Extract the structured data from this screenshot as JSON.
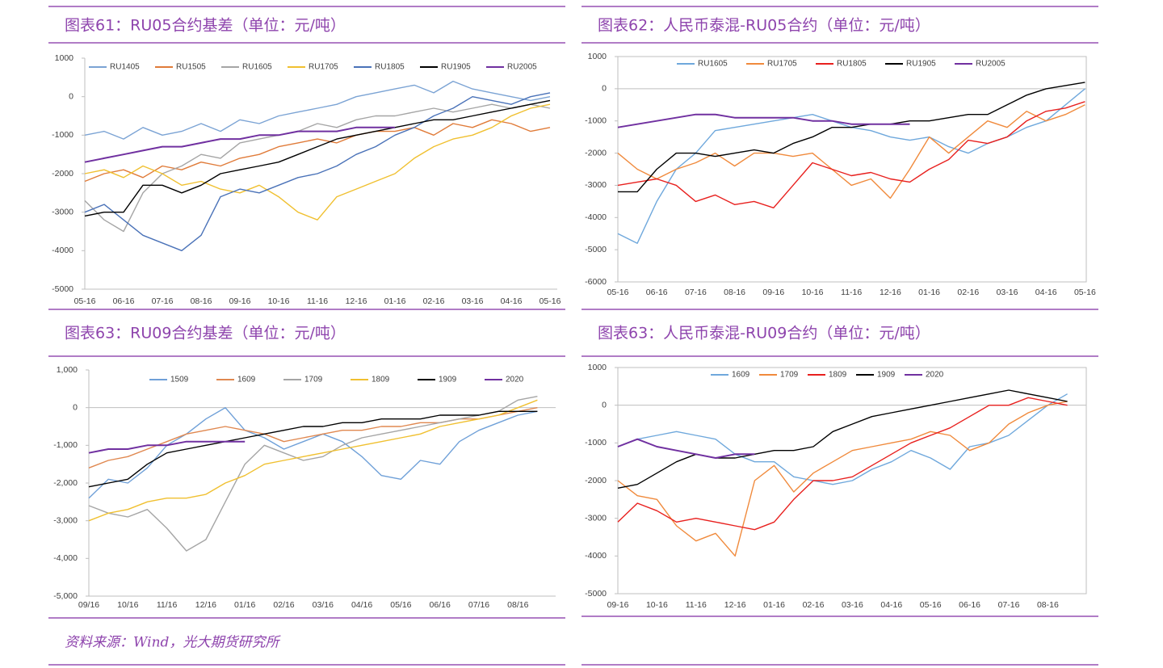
{
  "chart_data": [
    {
      "type": "line",
      "title": "图表61：RU05合约基差（单位：元/吨）",
      "categories": [
        "05-16",
        null,
        "06-16",
        null,
        "07-16",
        null,
        "08-16",
        null,
        "09-16",
        null,
        "10-16",
        null,
        "11-16",
        null,
        "12-16",
        null,
        "01-16",
        null,
        "02-16",
        null,
        "03-16",
        null,
        "04-16",
        null,
        "05-16"
      ],
      "ylim": [
        -5000,
        1000
      ],
      "yticks": [
        1000,
        0,
        -1000,
        -2000,
        -3000,
        -4000,
        -5000
      ],
      "grid": false,
      "series": [
        {
          "name": "RU1405",
          "color": "#7ba3d4",
          "values": [
            -1000,
            -900,
            -1100,
            -800,
            -1000,
            -900,
            -700,
            -900,
            -600,
            -700,
            -500,
            -400,
            -300,
            -200,
            0,
            100,
            200,
            300,
            100,
            400,
            200,
            100,
            0,
            -100,
            0
          ]
        },
        {
          "name": "RU1505",
          "color": "#e07b39",
          "values": [
            -2200,
            -2000,
            -1900,
            -2100,
            -1800,
            -1900,
            -1700,
            -1800,
            -1600,
            -1500,
            -1300,
            -1200,
            -1100,
            -1200,
            -1000,
            -900,
            -900,
            -800,
            -1000,
            -700,
            -800,
            -600,
            -700,
            -900,
            -800
          ]
        },
        {
          "name": "RU1605",
          "color": "#a5a5a5",
          "values": [
            -2700,
            -3200,
            -3500,
            -2500,
            -2000,
            -1800,
            -1500,
            -1600,
            -1200,
            -1100,
            -1000,
            -900,
            -700,
            -800,
            -600,
            -500,
            -500,
            -400,
            -300,
            -400,
            -300,
            -200,
            -300,
            -200,
            -300
          ]
        },
        {
          "name": "RU1705",
          "color": "#f0c030",
          "values": [
            -2000,
            -1900,
            -2100,
            -1800,
            -2000,
            -2300,
            -2200,
            -2400,
            -2500,
            -2300,
            -2600,
            -3000,
            -3200,
            -2600,
            -2400,
            -2200,
            -2000,
            -1600,
            -1300,
            -1100,
            -1000,
            -800,
            -500,
            -300,
            -200
          ]
        },
        {
          "name": "RU1805",
          "color": "#4a72b8",
          "values": [
            -3000,
            -2800,
            -3200,
            -3600,
            -3800,
            -4000,
            -3600,
            -2600,
            -2400,
            -2500,
            -2300,
            -2100,
            -2000,
            -1800,
            -1500,
            -1300,
            -1000,
            -800,
            -500,
            -300,
            0,
            -100,
            -200,
            0,
            100
          ]
        },
        {
          "name": "RU1905",
          "color": "#000000",
          "values": [
            -3100,
            -3000,
            -3000,
            -2300,
            -2300,
            -2500,
            -2300,
            -2000,
            -1900,
            -1800,
            -1700,
            -1500,
            -1300,
            -1100,
            -1000,
            -900,
            -800,
            -700,
            -600,
            -600,
            -500,
            -400,
            -300,
            -200,
            -100
          ]
        },
        {
          "name": "RU2005",
          "color": "#7030a0",
          "values": [
            -1700,
            -1600,
            -1500,
            -1400,
            -1300,
            -1300,
            -1200,
            -1100,
            -1100,
            -1000,
            -1000,
            -900,
            -900,
            -900,
            -800,
            -800,
            -800,
            null,
            null,
            null,
            null,
            null,
            null,
            null,
            null
          ]
        }
      ]
    },
    {
      "type": "line",
      "title": "图表62：人民币泰混-RU05合约（单位：元/吨）",
      "categories": [
        "05-16",
        null,
        "06-16",
        null,
        "07-16",
        null,
        "08-16",
        null,
        "09-16",
        null,
        "10-16",
        null,
        "11-16",
        null,
        "12-16",
        null,
        "01-16",
        null,
        "02-16",
        null,
        "03-16",
        null,
        "04-16",
        null,
        "05-16"
      ],
      "ylim": [
        -6000,
        1000
      ],
      "yticks": [
        1000,
        0,
        -1000,
        -2000,
        -3000,
        -4000,
        -5000,
        -6000
      ],
      "grid": false,
      "series": [
        {
          "name": "RU1605",
          "color": "#6fa8dc",
          "values": [
            -4500,
            -4800,
            -3500,
            -2500,
            -2000,
            -1300,
            -1200,
            -1100,
            -1000,
            -900,
            -800,
            -1000,
            -1200,
            -1300,
            -1500,
            -1600,
            -1500,
            -1800,
            -2000,
            -1700,
            -1500,
            -1200,
            -1000,
            -500,
            0
          ]
        },
        {
          "name": "RU1705",
          "color": "#f08a3c",
          "values": [
            -2000,
            -2500,
            -2800,
            -2500,
            -2300,
            -2000,
            -2400,
            -2000,
            -2000,
            -2100,
            -2000,
            -2500,
            -3000,
            -2800,
            -3400,
            -2500,
            -1500,
            -2000,
            -1500,
            -1000,
            -1200,
            -700,
            -1000,
            -800,
            -500
          ]
        },
        {
          "name": "RU1805",
          "color": "#e8201e",
          "values": [
            -3000,
            -2900,
            -2800,
            -3000,
            -3500,
            -3300,
            -3600,
            -3500,
            -3700,
            -3000,
            -2300,
            -2500,
            -2700,
            -2600,
            -2800,
            -2900,
            -2500,
            -2200,
            -1600,
            -1700,
            -1500,
            -1000,
            -700,
            -600,
            -400
          ]
        },
        {
          "name": "RU1905",
          "color": "#000000",
          "values": [
            -3200,
            -3200,
            -2500,
            -2000,
            -2000,
            -2100,
            -2000,
            -1900,
            -2000,
            -1700,
            -1500,
            -1200,
            -1200,
            -1100,
            -1100,
            -1000,
            -1000,
            -900,
            -800,
            -800,
            -500,
            -200,
            0,
            100,
            200
          ]
        },
        {
          "name": "RU2005",
          "color": "#7030a0",
          "values": [
            -1200,
            -1100,
            -1000,
            -900,
            -800,
            -800,
            -900,
            -900,
            -900,
            -900,
            -1000,
            -1000,
            -1100,
            -1100,
            -1100,
            -1100,
            null,
            null,
            null,
            null,
            null,
            null,
            null,
            null,
            null
          ]
        }
      ]
    },
    {
      "type": "line",
      "title": "图表63：RU09合约基差（单位：元/吨）",
      "categories": [
        "09/16",
        null,
        "10/16",
        null,
        "11/16",
        null,
        "12/16",
        null,
        "01/16",
        null,
        "02/16",
        null,
        "03/16",
        null,
        "04/16",
        null,
        "05/16",
        null,
        "06/16",
        null,
        "07/16",
        null,
        "08/16",
        null
      ],
      "ylim": [
        -5000,
        1000
      ],
      "yticks": [
        {
          "value": 1000,
          "label": "1,000"
        },
        0,
        {
          "value": -1000,
          "label": "-1,000"
        },
        {
          "value": -2000,
          "label": "-2,000"
        },
        {
          "value": -3000,
          "label": "-3,000"
        },
        {
          "value": -4000,
          "label": "-4,000"
        },
        {
          "value": -5000,
          "label": "-5,000"
        }
      ],
      "grid": false,
      "series": [
        {
          "name": "1509",
          "color": "#6fa0d8",
          "values": [
            -2400,
            -1900,
            -2000,
            -1600,
            -1000,
            -700,
            -300,
            0,
            -600,
            -800,
            -1100,
            -900,
            -700,
            -900,
            -1300,
            -1800,
            -1900,
            -1400,
            -1500,
            -900,
            -600,
            -400,
            -200,
            -100
          ]
        },
        {
          "name": "1609",
          "color": "#e08850",
          "values": [
            -1600,
            -1400,
            -1300,
            -1100,
            -900,
            -700,
            -600,
            -500,
            -600,
            -700,
            -900,
            -800,
            -700,
            -600,
            -600,
            -500,
            -500,
            -400,
            -400,
            -300,
            -300,
            -200,
            -100,
            0
          ]
        },
        {
          "name": "1709",
          "color": "#a5a5a5",
          "values": [
            -2600,
            -2800,
            -2900,
            -2700,
            -3200,
            -3800,
            -3500,
            -2500,
            -1500,
            -1000,
            -1200,
            -1400,
            -1300,
            -1000,
            -800,
            -700,
            -600,
            -500,
            -400,
            -300,
            -200,
            -100,
            200,
            300
          ]
        },
        {
          "name": "1809",
          "color": "#f0c030",
          "values": [
            -3000,
            -2800,
            -2700,
            -2500,
            -2400,
            -2400,
            -2300,
            -2000,
            -1800,
            -1500,
            -1400,
            -1300,
            -1200,
            -1100,
            -1000,
            -900,
            -800,
            -700,
            -500,
            -400,
            -300,
            -200,
            0,
            200
          ]
        },
        {
          "name": "1909",
          "color": "#000000",
          "values": [
            -2100,
            -2000,
            -1900,
            -1500,
            -1200,
            -1100,
            -1000,
            -900,
            -800,
            -700,
            -600,
            -500,
            -500,
            -400,
            -400,
            -300,
            -300,
            -300,
            -200,
            -200,
            -200,
            -100,
            -100,
            -100
          ]
        },
        {
          "name": "2020",
          "color": "#7030a0",
          "values": [
            -1200,
            -1100,
            -1100,
            -1000,
            -1000,
            -900,
            -900,
            -900,
            -900,
            null,
            null,
            null,
            null,
            null,
            null,
            null,
            null,
            null,
            null,
            null,
            null,
            null,
            null,
            null
          ]
        }
      ]
    },
    {
      "type": "line",
      "title": "图表63：人民币泰混-RU09合约（单位：元/吨）",
      "categories": [
        "09-16",
        null,
        "10-16",
        null,
        "11-16",
        null,
        "12-16",
        null,
        "01-16",
        null,
        "02-16",
        null,
        "03-16",
        null,
        "04-16",
        null,
        "05-16",
        null,
        "06-16",
        null,
        "07-16",
        null,
        "08-16",
        null
      ],
      "ylim": [
        -5000,
        1000
      ],
      "yticks": [
        1000,
        0,
        -1000,
        -2000,
        -3000,
        -4000,
        -5000
      ],
      "grid": false,
      "series": [
        {
          "name": "1609",
          "color": "#6fa8dc",
          "values": [
            -1100,
            -900,
            -800,
            -700,
            -800,
            -900,
            -1300,
            -1500,
            -1500,
            -1900,
            -2000,
            -2100,
            -2000,
            -1700,
            -1500,
            -1200,
            -1400,
            -1700,
            -1100,
            -1000,
            -800,
            -400,
            0,
            300
          ]
        },
        {
          "name": "1709",
          "color": "#f08a3c",
          "values": [
            -2000,
            -2400,
            -2500,
            -3200,
            -3600,
            -3400,
            -4000,
            -2000,
            -1600,
            -2300,
            -1800,
            -1500,
            -1200,
            -1100,
            -1000,
            -900,
            -700,
            -800,
            -1200,
            -1000,
            -500,
            -200,
            0,
            100
          ]
        },
        {
          "name": "1809",
          "color": "#e8201e",
          "values": [
            -3100,
            -2600,
            -2800,
            -3100,
            -3000,
            -3100,
            -3200,
            -3300,
            -3100,
            -2500,
            -2000,
            -2000,
            -1900,
            -1600,
            -1300,
            -1000,
            -800,
            -600,
            -300,
            0,
            0,
            200,
            100,
            0
          ]
        },
        {
          "name": "1909",
          "color": "#000000",
          "values": [
            -2200,
            -2100,
            -1800,
            -1500,
            -1300,
            -1400,
            -1400,
            -1300,
            -1200,
            -1200,
            -1100,
            -700,
            -500,
            -300,
            -200,
            -100,
            0,
            100,
            200,
            300,
            400,
            300,
            200,
            100
          ]
        },
        {
          "name": "2020",
          "color": "#7030a0",
          "values": [
            -1100,
            -900,
            -1100,
            -1200,
            -1300,
            -1400,
            -1300,
            -1300,
            null,
            null,
            null,
            null,
            null,
            null,
            null,
            null,
            null,
            null,
            null,
            null,
            null,
            null,
            null,
            null
          ]
        }
      ]
    }
  ],
  "source": "资料来源：Wind，光大期货研究所"
}
